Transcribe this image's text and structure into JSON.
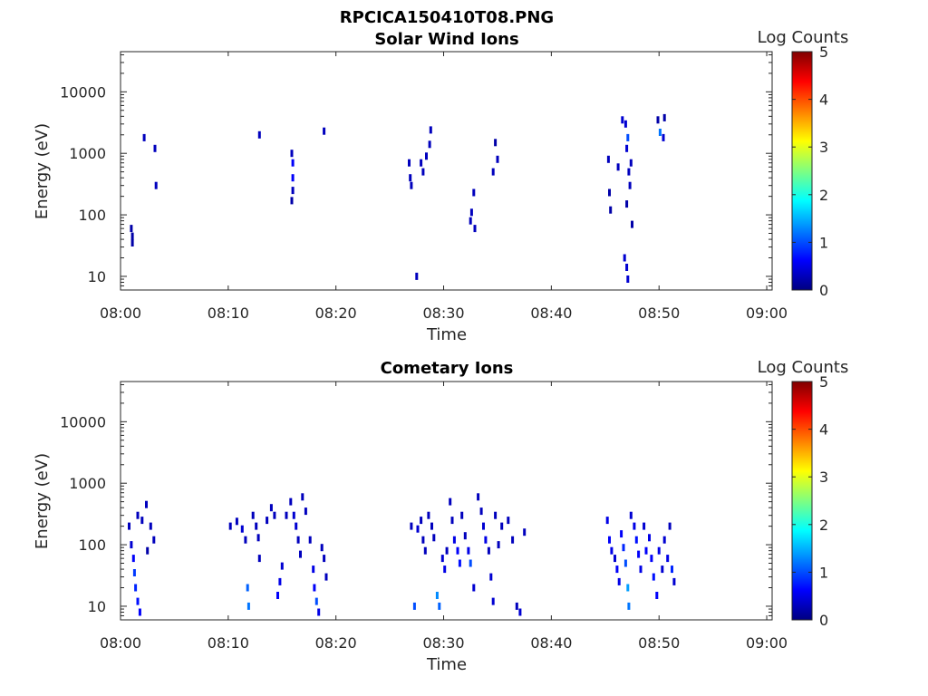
{
  "figure_title": "RPCICA150410T08.PNG",
  "chart_data": [
    {
      "type": "heatmap",
      "title": "Solar Wind Ions",
      "xlabel": "Time",
      "ylabel": "Energy (eV)",
      "x_ticks": [
        "08:00",
        "08:10",
        "08:20",
        "08:30",
        "08:40",
        "08:50",
        "09:00"
      ],
      "x_range_minutes": [
        0,
        60.5
      ],
      "y_scale": "log",
      "y_ticks": [
        "10",
        "100",
        "1000",
        "10000"
      ],
      "y_range": [
        6,
        45000
      ],
      "colorbar": {
        "label": "Log Counts",
        "range": [
          0,
          5
        ],
        "ticks": [
          "0",
          "1",
          "2",
          "3",
          "4",
          "5"
        ],
        "colormap": "jet"
      },
      "cells": [
        [
          1.1,
          35,
          0.2
        ],
        [
          1.1,
          45,
          0.2
        ],
        [
          1.0,
          60,
          0.2
        ],
        [
          2.2,
          1800,
          0.3
        ],
        [
          3.2,
          1200,
          0.3
        ],
        [
          3.3,
          300,
          0.3
        ],
        [
          12.9,
          2000,
          0.3
        ],
        [
          15.9,
          1000,
          0.3
        ],
        [
          16.0,
          700,
          0.6
        ],
        [
          16.0,
          400,
          0.6
        ],
        [
          16.0,
          250,
          0.3
        ],
        [
          15.9,
          170,
          0.2
        ],
        [
          18.9,
          2300,
          0.3
        ],
        [
          26.8,
          700,
          0.3
        ],
        [
          26.9,
          400,
          0.3
        ],
        [
          27.0,
          300,
          0.3
        ],
        [
          27.5,
          10,
          0.3
        ],
        [
          27.9,
          700,
          0.3
        ],
        [
          28.1,
          500,
          0.3
        ],
        [
          28.4,
          900,
          0.3
        ],
        [
          28.7,
          1400,
          0.3
        ],
        [
          28.8,
          2400,
          0.3
        ],
        [
          32.5,
          80,
          0.3
        ],
        [
          32.6,
          110,
          0.3
        ],
        [
          32.9,
          60,
          0.3
        ],
        [
          32.8,
          230,
          0.3
        ],
        [
          34.6,
          500,
          0.3
        ],
        [
          35.0,
          800,
          0.3
        ],
        [
          34.8,
          1500,
          0.2
        ],
        [
          45.3,
          800,
          0.3
        ],
        [
          45.4,
          230,
          0.2
        ],
        [
          45.5,
          120,
          0.2
        ],
        [
          46.2,
          600,
          0.3
        ],
        [
          46.6,
          3500,
          0.4
        ],
        [
          46.9,
          3000,
          0.4
        ],
        [
          47.1,
          1800,
          1.0
        ],
        [
          47.0,
          1200,
          0.4
        ],
        [
          47.2,
          500,
          0.3
        ],
        [
          47.3,
          300,
          0.3
        ],
        [
          47.4,
          700,
          0.3
        ],
        [
          47.0,
          150,
          0.2
        ],
        [
          47.5,
          70,
          0.2
        ],
        [
          46.8,
          20,
          0.4
        ],
        [
          47.0,
          14,
          0.4
        ],
        [
          47.1,
          9,
          0.4
        ],
        [
          49.9,
          3500,
          0.2
        ],
        [
          50.1,
          2200,
          1.2
        ],
        [
          50.4,
          1800,
          0.4
        ],
        [
          50.5,
          3800,
          0.2
        ]
      ]
    },
    {
      "type": "heatmap",
      "title": "Cometary Ions",
      "xlabel": "Time",
      "ylabel": "Energy (eV)",
      "x_ticks": [
        "08:00",
        "08:10",
        "08:20",
        "08:30",
        "08:40",
        "08:50",
        "09:00"
      ],
      "x_range_minutes": [
        0,
        60.5
      ],
      "y_scale": "log",
      "y_ticks": [
        "10",
        "100",
        "1000",
        "10000"
      ],
      "y_range": [
        6,
        45000
      ],
      "colorbar": {
        "label": "Log Counts",
        "range": [
          0,
          5
        ],
        "ticks": [
          "0",
          "1",
          "2",
          "3",
          "4",
          "5"
        ],
        "colormap": "jet"
      },
      "cells": [
        [
          0.8,
          200,
          0.3
        ],
        [
          1.0,
          100,
          0.4
        ],
        [
          1.2,
          60,
          0.6
        ],
        [
          1.3,
          35,
          0.9
        ],
        [
          1.4,
          20,
          0.8
        ],
        [
          1.6,
          12,
          0.7
        ],
        [
          1.8,
          8,
          0.6
        ],
        [
          1.6,
          300,
          0.3
        ],
        [
          2.0,
          250,
          0.3
        ],
        [
          2.4,
          450,
          0.3
        ],
        [
          2.8,
          200,
          0.3
        ],
        [
          3.1,
          120,
          0.3
        ],
        [
          2.5,
          80,
          0.2
        ],
        [
          10.2,
          200,
          0.3
        ],
        [
          10.8,
          240,
          0.3
        ],
        [
          11.3,
          180,
          0.4
        ],
        [
          11.6,
          120,
          0.3
        ],
        [
          11.8,
          20,
          1.1
        ],
        [
          11.9,
          10,
          1.2
        ],
        [
          12.3,
          300,
          0.3
        ],
        [
          12.6,
          200,
          0.3
        ],
        [
          12.8,
          130,
          0.3
        ],
        [
          12.9,
          60,
          0.3
        ],
        [
          13.6,
          250,
          0.3
        ],
        [
          14.0,
          400,
          0.3
        ],
        [
          14.3,
          300,
          0.3
        ],
        [
          14.6,
          15,
          0.6
        ],
        [
          14.8,
          25,
          0.5
        ],
        [
          15.0,
          45,
          0.4
        ],
        [
          15.4,
          300,
          0.3
        ],
        [
          15.8,
          500,
          0.3
        ],
        [
          16.1,
          300,
          0.4
        ],
        [
          16.3,
          200,
          0.4
        ],
        [
          16.5,
          120,
          0.3
        ],
        [
          16.7,
          70,
          0.3
        ],
        [
          16.9,
          600,
          0.3
        ],
        [
          17.2,
          350,
          0.3
        ],
        [
          17.6,
          120,
          0.3
        ],
        [
          17.9,
          40,
          0.5
        ],
        [
          18.0,
          20,
          0.6
        ],
        [
          18.2,
          12,
          1.0
        ],
        [
          18.4,
          8,
          0.5
        ],
        [
          18.7,
          90,
          0.3
        ],
        [
          18.9,
          60,
          0.3
        ],
        [
          19.1,
          30,
          0.3
        ],
        [
          27.0,
          200,
          0.3
        ],
        [
          27.3,
          10,
          1.0
        ],
        [
          27.6,
          180,
          0.4
        ],
        [
          27.9,
          250,
          0.3
        ],
        [
          28.1,
          120,
          0.3
        ],
        [
          28.3,
          80,
          0.3
        ],
        [
          28.6,
          300,
          0.3
        ],
        [
          28.9,
          200,
          0.3
        ],
        [
          29.1,
          130,
          0.3
        ],
        [
          29.4,
          15,
          1.3
        ],
        [
          29.6,
          10,
          1.1
        ],
        [
          29.9,
          60,
          0.4
        ],
        [
          30.1,
          40,
          0.5
        ],
        [
          30.3,
          80,
          0.3
        ],
        [
          30.6,
          500,
          0.3
        ],
        [
          30.8,
          250,
          0.3
        ],
        [
          31.0,
          120,
          0.5
        ],
        [
          31.3,
          80,
          0.6
        ],
        [
          31.5,
          50,
          0.7
        ],
        [
          31.7,
          300,
          0.3
        ],
        [
          32.0,
          140,
          0.3
        ],
        [
          32.3,
          80,
          0.5
        ],
        [
          32.5,
          50,
          1.0
        ],
        [
          32.8,
          20,
          0.4
        ],
        [
          33.2,
          600,
          0.3
        ],
        [
          33.5,
          350,
          0.3
        ],
        [
          33.7,
          200,
          0.4
        ],
        [
          33.9,
          120,
          0.5
        ],
        [
          34.2,
          80,
          0.3
        ],
        [
          34.4,
          30,
          0.4
        ],
        [
          34.6,
          12,
          0.4
        ],
        [
          34.8,
          300,
          0.3
        ],
        [
          35.1,
          100,
          0.3
        ],
        [
          35.4,
          200,
          0.3
        ],
        [
          36.0,
          250,
          0.3
        ],
        [
          36.4,
          120,
          0.3
        ],
        [
          36.8,
          10,
          0.3
        ],
        [
          37.1,
          8,
          0.4
        ],
        [
          37.5,
          160,
          0.3
        ],
        [
          45.2,
          250,
          0.5
        ],
        [
          45.4,
          120,
          0.6
        ],
        [
          45.6,
          80,
          0.5
        ],
        [
          45.9,
          60,
          0.4
        ],
        [
          46.1,
          40,
          0.6
        ],
        [
          46.3,
          25,
          0.5
        ],
        [
          46.5,
          150,
          0.6
        ],
        [
          46.7,
          90,
          0.8
        ],
        [
          46.9,
          50,
          1.0
        ],
        [
          47.1,
          20,
          1.4
        ],
        [
          47.2,
          10,
          1.2
        ],
        [
          47.4,
          300,
          0.4
        ],
        [
          47.7,
          200,
          0.5
        ],
        [
          47.9,
          120,
          0.7
        ],
        [
          48.1,
          70,
          0.6
        ],
        [
          48.3,
          40,
          0.5
        ],
        [
          48.6,
          200,
          0.4
        ],
        [
          48.8,
          80,
          0.6
        ],
        [
          49.1,
          130,
          0.5
        ],
        [
          49.3,
          60,
          0.6
        ],
        [
          49.5,
          30,
          0.7
        ],
        [
          49.8,
          15,
          0.6
        ],
        [
          50.0,
          80,
          0.5
        ],
        [
          50.3,
          40,
          0.4
        ],
        [
          50.5,
          120,
          0.4
        ],
        [
          50.8,
          60,
          0.5
        ],
        [
          51.0,
          200,
          0.3
        ],
        [
          51.2,
          40,
          0.8
        ],
        [
          51.4,
          25,
          0.4
        ]
      ]
    }
  ]
}
